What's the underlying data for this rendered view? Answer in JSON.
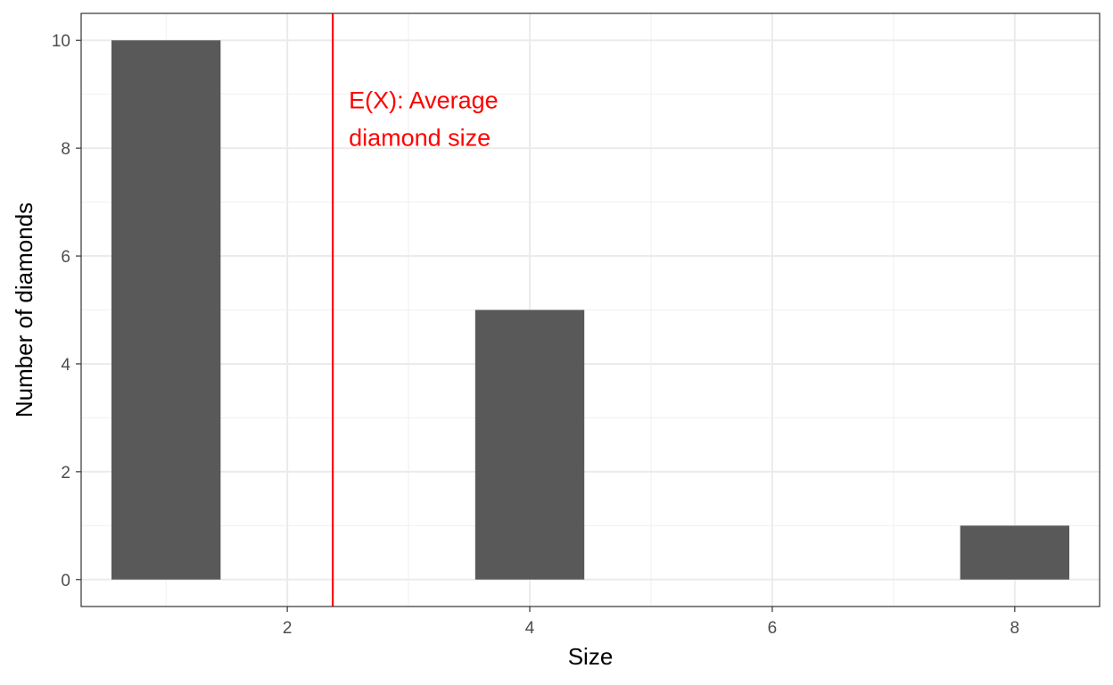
{
  "chart_data": {
    "type": "bar",
    "title": "",
    "xlabel": "Size",
    "ylabel": "Number of diamonds",
    "x": [
      1,
      4,
      8
    ],
    "values": [
      10,
      5,
      1
    ],
    "bar_width": 0.9,
    "xlim": [
      0.3,
      8.7
    ],
    "ylim": [
      -0.5,
      10.5
    ],
    "x_ticks": [
      2,
      4,
      6,
      8
    ],
    "x_tick_labels": [
      "2",
      "4",
      "6",
      "8"
    ],
    "y_ticks": [
      0,
      2,
      4,
      6,
      8,
      10
    ],
    "y_tick_labels": [
      "0",
      "2",
      "4",
      "6",
      "8",
      "10"
    ],
    "grid": true,
    "legend": "none",
    "bar_color": "#595959",
    "vline": {
      "x": 2.375,
      "color": "#ff0000",
      "label_lines": [
        "E(X): Average",
        "diamond size"
      ],
      "label_y": 8.9
    }
  }
}
